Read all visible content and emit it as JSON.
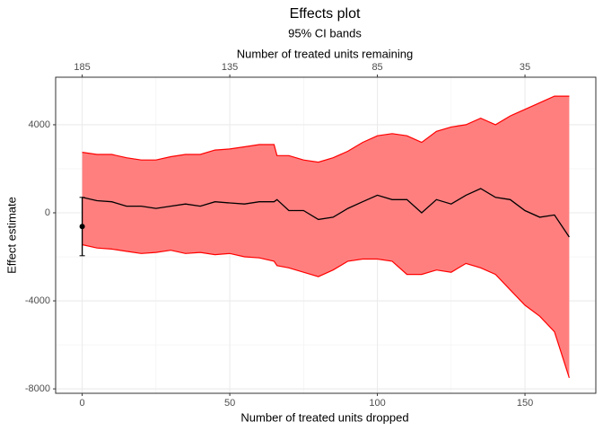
{
  "chart_data": {
    "type": "line",
    "title": "Effects plot",
    "subtitle": "95% CI bands",
    "xlabel": "Number of treated units dropped",
    "ylabel": "Effect estimate",
    "x2label": "Number of treated units remaining",
    "x": [
      0,
      5,
      10,
      15,
      20,
      25,
      30,
      35,
      40,
      45,
      50,
      55,
      60,
      65,
      66,
      70,
      75,
      80,
      85,
      90,
      95,
      100,
      105,
      110,
      115,
      120,
      125,
      130,
      135,
      140,
      145,
      150,
      155,
      160,
      165
    ],
    "series": [
      {
        "color": "#000000",
        "values": [
          700,
          550,
          500,
          300,
          300,
          200,
          300,
          400,
          300,
          500,
          450,
          400,
          500,
          500,
          600,
          100,
          100,
          -300,
          -200,
          200,
          500,
          800,
          600,
          600,
          0,
          600,
          400,
          800,
          1100,
          700,
          600,
          100,
          -200,
          -100,
          -1100
        ]
      }
    ],
    "band": {
      "color": "#ff0000",
      "fill": "#ff7f7f",
      "upper": [
        2750,
        2650,
        2650,
        2500,
        2400,
        2400,
        2550,
        2650,
        2650,
        2850,
        2900,
        3000,
        3100,
        3100,
        2600,
        2600,
        2400,
        2300,
        2500,
        2800,
        3200,
        3500,
        3600,
        3500,
        3200,
        3700,
        3900,
        4000,
        4300,
        4000,
        4400,
        4700,
        5000,
        5300,
        5300
      ],
      "lower": [
        -1450,
        -1600,
        -1650,
        -1750,
        -1850,
        -1800,
        -1700,
        -1850,
        -1800,
        -1900,
        -1850,
        -2000,
        -2050,
        -2200,
        -2400,
        -2500,
        -2700,
        -2900,
        -2600,
        -2200,
        -2100,
        -2100,
        -2200,
        -2800,
        -2800,
        -2600,
        -2700,
        -2300,
        -2500,
        -2800,
        -3500,
        -4200,
        -4700,
        -5400,
        -7500
      ]
    },
    "point": {
      "x": 0,
      "y": -620,
      "lower": -1950,
      "upper": 700
    },
    "xlim": [
      -9,
      174
    ],
    "ylim": [
      -8200,
      6160
    ],
    "xticks": [
      0,
      50,
      100,
      150
    ],
    "x2ticks": [
      {
        "value": 0,
        "label": "185"
      },
      {
        "value": 50,
        "label": "135"
      },
      {
        "value": 100,
        "label": "85"
      },
      {
        "value": 150,
        "label": "35"
      }
    ],
    "yticks": [
      -8000,
      -4000,
      0,
      4000
    ],
    "xminor": [
      25,
      75,
      125
    ],
    "yminor": [
      -6000,
      -2000,
      2000
    ],
    "grid": true
  }
}
